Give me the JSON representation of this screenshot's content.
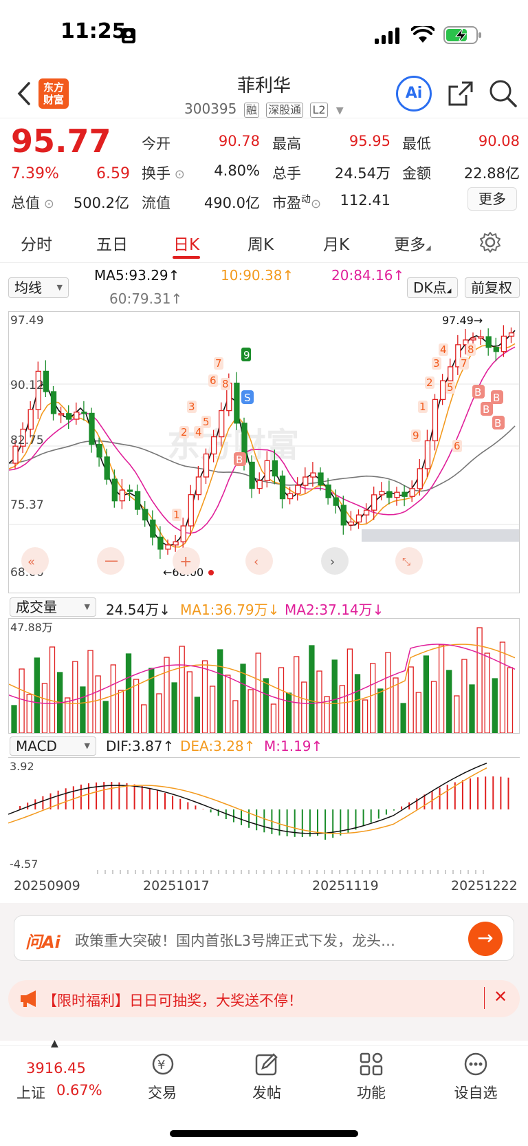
{
  "status_bar": {
    "time": "11:25"
  },
  "header": {
    "logo_text_1": "东方",
    "logo_text_2": "财富",
    "stock_name": "菲利华",
    "stock_code": "300395",
    "tags": [
      "融",
      "深股通",
      "L2"
    ],
    "ai_label": "Ai"
  },
  "quote": {
    "price": "95.77",
    "change_pct": "7.39%",
    "change_amt": "6.59",
    "open_label": "今开",
    "open": "90.78",
    "high_label": "最高",
    "high": "95.95",
    "low_label": "最低",
    "low": "90.08",
    "turnover_label": "换手",
    "turnover": "4.80%",
    "volume_label": "总手",
    "volume": "24.54万",
    "amount_label": "金额",
    "amount": "22.88亿",
    "mktcap_label": "总值",
    "mktcap": "500.2亿",
    "float_label": "流值",
    "float_cap": "490.0亿",
    "pe_label": "市盈",
    "pe_sup": "动",
    "pe": "112.41",
    "more_label": "更多"
  },
  "tabs": [
    "分时",
    "五日",
    "日K",
    "周K",
    "月K",
    "更多"
  ],
  "active_tab": "日K",
  "ma_bar": {
    "selector": "均线",
    "ma5": "MA5:93.29↑",
    "ma10": "10:90.38↑",
    "ma20": "20:84.16↑",
    "ma60": "60:79.31↑",
    "dk_button": "DK点",
    "adjust_button": "前复权"
  },
  "kline": {
    "price_max": "97.49",
    "price_90": "90.12",
    "price_82": "82.75",
    "price_75": "75.37",
    "price_min": "68.00",
    "high_marker": "97.49→",
    "low_marker": "←68.00",
    "signals": [
      "1",
      "2",
      "3",
      "4",
      "5",
      "6",
      "7",
      "8",
      "9",
      "1",
      "2",
      "3",
      "4",
      "5",
      "6",
      "7",
      "8",
      "9"
    ],
    "labels_b": "B",
    "labels_s": "S"
  },
  "volume_bar": {
    "selector": "成交量",
    "vol": "24.54万↓",
    "ma1": "MA1:36.79万↓",
    "ma2": "MA2:37.14万↓",
    "max": "47.88万"
  },
  "macd_bar": {
    "selector": "MACD",
    "dif": "DIF:3.87↑",
    "dea": "DEA:3.28↑",
    "m": "M:1.19↑",
    "max": "3.92",
    "min": "-4.57"
  },
  "dates": [
    "20250909",
    "20251017",
    "20251119",
    "20251222"
  ],
  "colors": {
    "up": "#e02020",
    "down": "#1a8c2a",
    "ma5": "#111111",
    "ma10": "#f39a1e",
    "ma20": "#e0209a",
    "ma60": "#777777"
  },
  "wenai": {
    "logo": "问Ai",
    "text": "政策重大突破！国内首张L3号牌正式下发，龙头…"
  },
  "promo": {
    "text": "【限时福利】日日可抽奖，大奖送不停！"
  },
  "bottom_nav": {
    "index_value": "3916.45",
    "index_name": "上证",
    "index_change": "0.67%",
    "items": [
      "交易",
      "发帖",
      "功能",
      "设自选"
    ]
  }
}
